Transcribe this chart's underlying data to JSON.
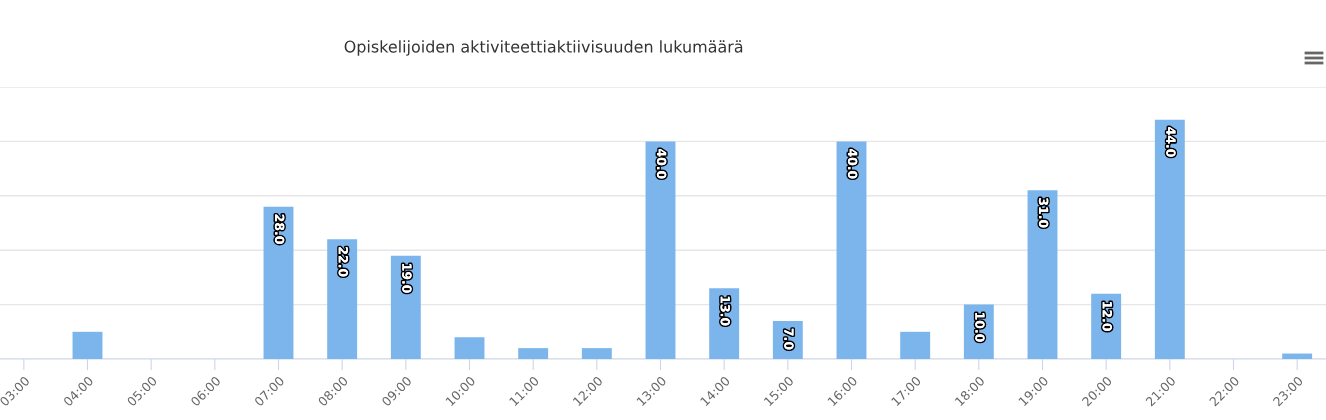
{
  "chart_data": {
    "type": "bar",
    "title": "Opiskelijoiden aktiviteettiaktiivisuuden lukumäärä",
    "categories": [
      "03:00",
      "04:00",
      "05:00",
      "06:00",
      "07:00",
      "08:00",
      "09:00",
      "10:00",
      "11:00",
      "12:00",
      "13:00",
      "14:00",
      "15:00",
      "16:00",
      "17:00",
      "18:00",
      "19:00",
      "20:00",
      "21:00",
      "22:00",
      "23:00"
    ],
    "values": [
      0,
      5,
      0,
      0,
      28,
      22,
      19,
      4,
      2,
      2,
      40,
      13,
      7,
      40,
      5,
      10,
      31,
      12,
      44,
      0,
      1
    ],
    "value_labels": [
      null,
      null,
      null,
      null,
      "28.0",
      "22.0",
      "19.0",
      null,
      null,
      null,
      "40.0",
      "13.0",
      "7.0",
      "40.0",
      null,
      "10.0",
      "31.0",
      "12.0",
      "44.0",
      null,
      null
    ],
    "color": "#7cb5ec",
    "ylim": [
      0,
      50
    ],
    "yticks": [
      {
        "value": 0,
        "label": null
      },
      {
        "value": 10,
        "label": null
      },
      {
        "value": 20,
        "label": null
      },
      {
        "value": 30,
        "label": null
      },
      {
        "value": 40,
        "label": null
      },
      {
        "value": 50,
        "label": null
      }
    ],
    "grid": "y",
    "tick_labels": "x",
    "legend": false
  }
}
